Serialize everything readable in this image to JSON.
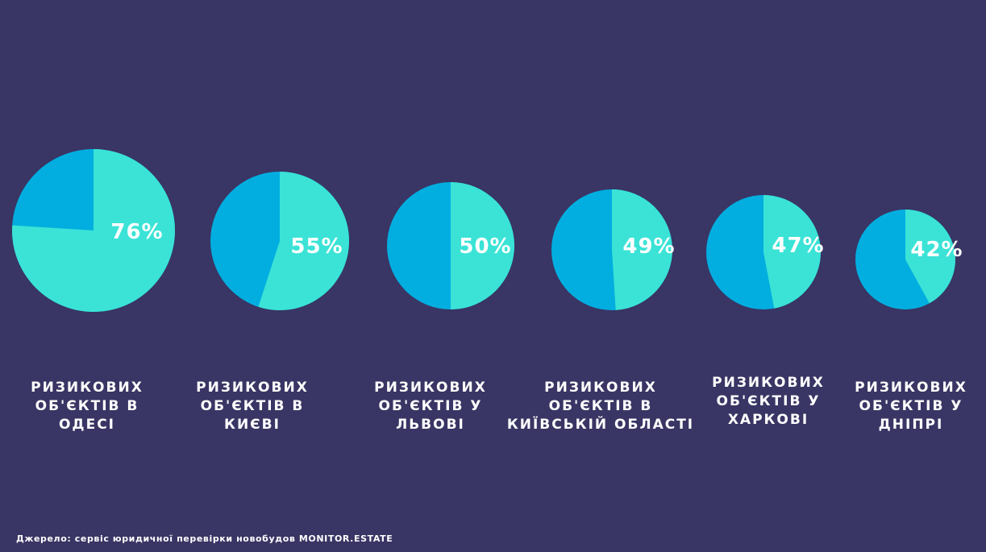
{
  "chart_data": {
    "type": "pie",
    "colors": {
      "background": "#393564",
      "share": "#3AE3D6",
      "rest": "#02AEE0",
      "text": "#FFFFFF"
    },
    "slices": [
      {
        "value": 76,
        "label": "76%",
        "caption": [
          "РИЗИКОВИХ",
          "ОБ'ЄКТІВ В",
          "ОДЕСІ"
        ]
      },
      {
        "value": 55,
        "label": "55%",
        "caption": [
          "РИЗИКОВИХ",
          "ОБ'ЄКТІВ В",
          "КИЄВІ"
        ]
      },
      {
        "value": 50,
        "label": "50%",
        "caption": [
          "РИЗИКОВИХ",
          "ОБ'ЄКТІВ У",
          "ЛЬВОВІ"
        ]
      },
      {
        "value": 49,
        "label": "49%",
        "caption": [
          "РИЗИКОВИХ",
          "ОБ'ЄКТІВ В",
          "КИЇВСЬКІЙ ОБЛАСТІ"
        ]
      },
      {
        "value": 47,
        "label": "47%",
        "caption": [
          "РИЗИКОВИХ",
          "ОБ'ЄКТІВ У",
          "ХАРКОВІ"
        ]
      },
      {
        "value": 42,
        "label": "42%",
        "caption": [
          "РИЗИКОВИХ",
          "ОБ'ЄКТІВ У",
          "ДНІПРІ"
        ]
      }
    ]
  },
  "source_text": "Джерело: сервіс юридичної перевірки новобудов MONITOR.ESTATE"
}
